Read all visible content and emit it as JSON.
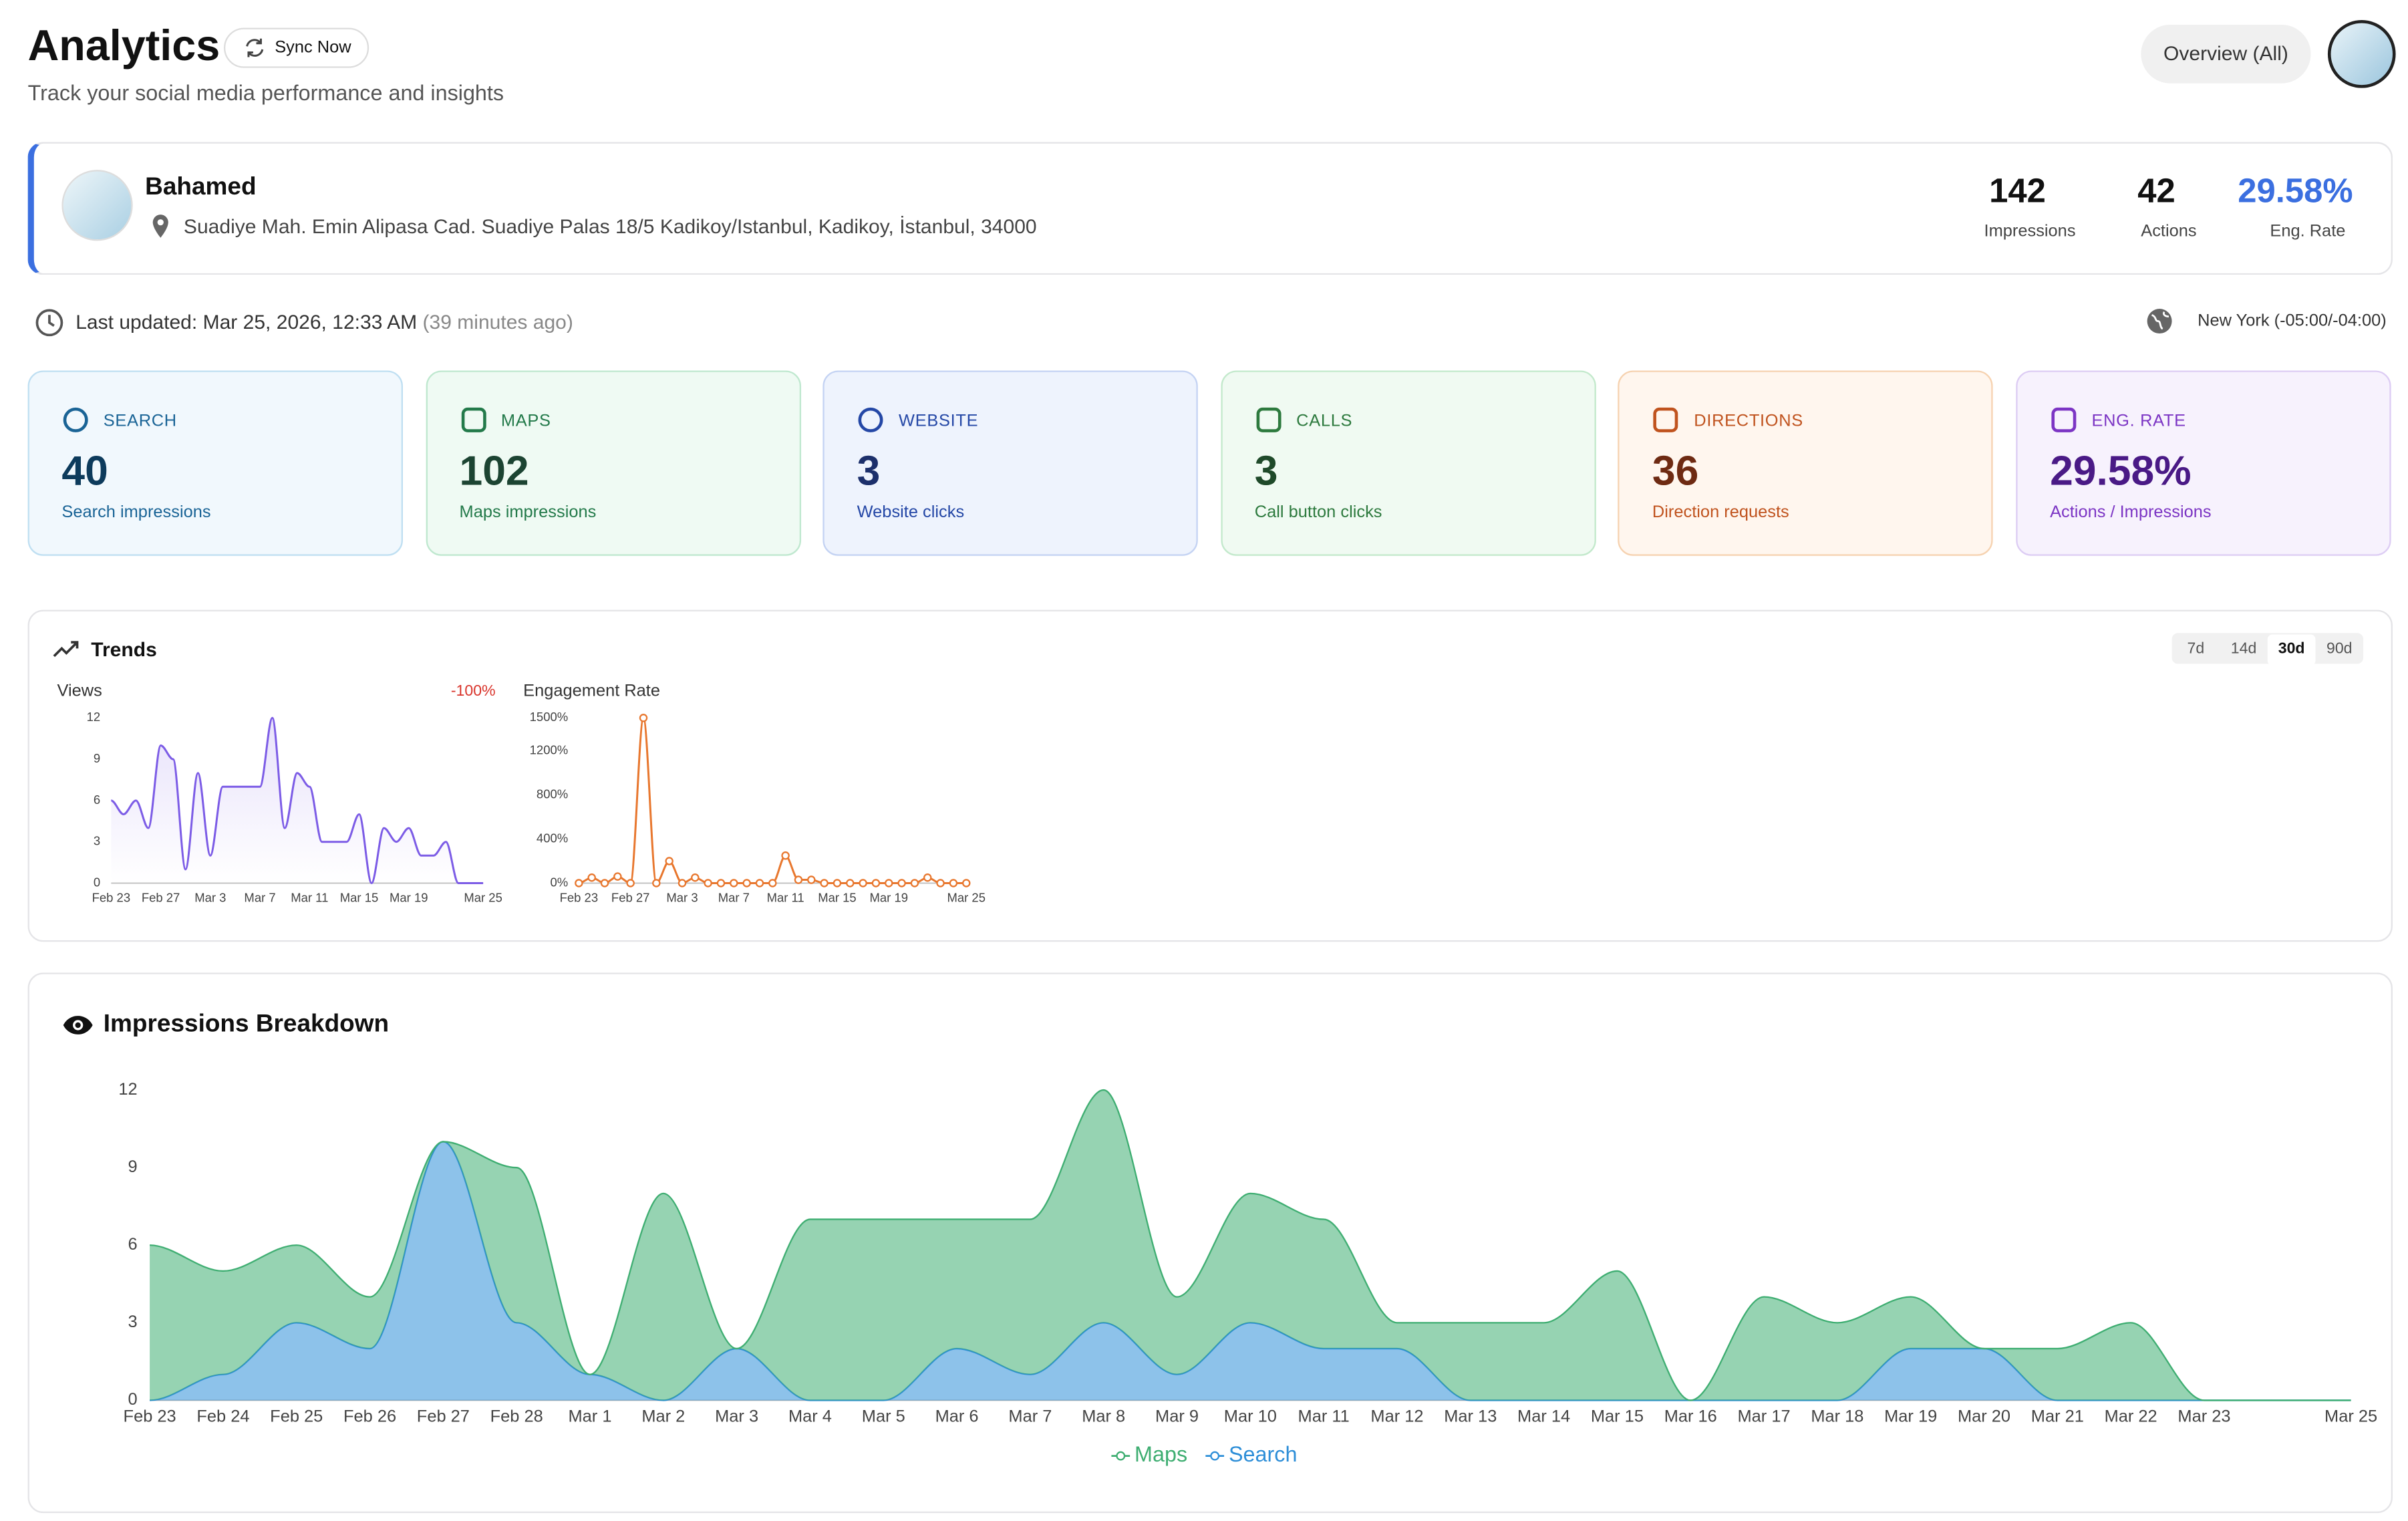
{
  "header": {
    "title": "Analytics",
    "sync": "Sync Now",
    "subtitle": "Track your social media performance and insights",
    "view": "Overview (All)"
  },
  "profile": {
    "name": "Bahamed",
    "address": "Suadiye Mah. Emin Alipasa Cad. Suadiye Palas 18/5 Kadikoy/Istanbul, Kadikoy, İstanbul, 34000",
    "stats": [
      {
        "value": 142,
        "label": "Impressions"
      },
      {
        "value": 42,
        "label": "Actions"
      },
      {
        "value": "29.58%",
        "label": "Eng. Rate"
      }
    ]
  },
  "status": {
    "updated": "Last updated: Mar 25, 2026, 12:33 AM",
    "ago": "(39 minutes ago)",
    "timezone": "New York (-05:00/-04:00)"
  },
  "cards": [
    {
      "label": "SEARCH",
      "value": 40,
      "caption": "Search impressions"
    },
    {
      "label": "MAPS",
      "value": 102,
      "caption": "Maps impressions"
    },
    {
      "label": "WEBSITE",
      "value": 3,
      "caption": "Website clicks"
    },
    {
      "label": "CALLS",
      "value": 3,
      "caption": "Call button clicks"
    },
    {
      "label": "DIRECTIONS",
      "value": 36,
      "caption": "Direction requests"
    },
    {
      "label": "ENG. RATE",
      "value": "29.58%",
      "caption": "Actions / Impressions"
    }
  ],
  "trends": {
    "title": "Trends",
    "ranges": [
      "7d",
      "14d",
      "30d",
      "90d"
    ]
  },
  "chart_data": [
    {
      "type": "line",
      "title": "Views",
      "annotation": "-100%",
      "color": "#7c5ce6",
      "area": true,
      "categories": [
        "Feb 23",
        null,
        null,
        null,
        "Feb 27",
        null,
        null,
        null,
        "Mar 3",
        null,
        null,
        null,
        "Mar 7",
        null,
        null,
        null,
        "Mar 11",
        null,
        null,
        null,
        "Mar 15",
        null,
        null,
        null,
        "Mar 19",
        null,
        null,
        null,
        null,
        null,
        "Mar 25"
      ],
      "values": [
        6,
        5,
        6,
        4,
        10,
        9,
        1,
        8,
        2,
        7,
        7,
        7,
        7,
        12,
        4,
        8,
        7,
        3,
        3,
        3,
        5,
        0,
        4,
        3,
        4,
        2,
        2,
        3,
        0,
        0,
        0
      ],
      "ylim": [
        0,
        12
      ],
      "yticks": [
        0,
        3,
        6,
        9,
        12
      ]
    },
    {
      "type": "line",
      "title": "Engagement Rate",
      "color": "#e8772e",
      "markers": true,
      "categories": [
        "Feb 23",
        null,
        null,
        null,
        "Feb 27",
        null,
        null,
        null,
        "Mar 3",
        null,
        null,
        null,
        "Mar 7",
        null,
        null,
        null,
        "Mar 11",
        null,
        null,
        null,
        "Mar 15",
        null,
        null,
        null,
        "Mar 19",
        null,
        null,
        null,
        null,
        null,
        "Mar 25"
      ],
      "values": [
        0,
        50,
        0,
        60,
        0,
        1500,
        0,
        200,
        0,
        50,
        0,
        0,
        0,
        0,
        0,
        0,
        250,
        30,
        30,
        0,
        0,
        0,
        0,
        0,
        0,
        0,
        0,
        50,
        0,
        0,
        0
      ],
      "ylim": [
        0,
        1500
      ],
      "yticks": [
        {
          "value": 0,
          "label": "0%"
        },
        {
          "value": 400,
          "label": "400%"
        },
        {
          "value": 800,
          "label": "800%"
        },
        {
          "value": 1200,
          "label": "1200%"
        },
        {
          "value": 1500,
          "label": "1500%"
        }
      ]
    },
    {
      "type": "stacked_area",
      "title": "Impressions Breakdown",
      "categories": [
        "Feb 23",
        "Feb 24",
        "Feb 25",
        "Feb 26",
        "Feb 27",
        "Feb 28",
        "Mar 1",
        "Mar 2",
        "Mar 3",
        "Mar 4",
        "Mar 5",
        "Mar 6",
        "Mar 7",
        "Mar 8",
        "Mar 9",
        "Mar 10",
        "Mar 11",
        "Mar 12",
        "Mar 13",
        "Mar 14",
        "Mar 15",
        "Mar 16",
        "Mar 17",
        "Mar 18",
        "Mar 19",
        "Mar 20",
        "Mar 21",
        "Mar 22",
        "Mar 23",
        null,
        "Mar 25"
      ],
      "series": [
        {
          "name": "Maps",
          "color": "#3fae72",
          "values": [
            6,
            4,
            3,
            2,
            0,
            6,
            0,
            8,
            0,
            7,
            7,
            5,
            6,
            9,
            3,
            5,
            5,
            1,
            3,
            3,
            5,
            0,
            4,
            3,
            2,
            0,
            2,
            3,
            0,
            0,
            0
          ]
        },
        {
          "name": "Search",
          "color": "#2f8fd8",
          "values": [
            0,
            1,
            3,
            2,
            10,
            3,
            1,
            0,
            2,
            0,
            0,
            2,
            1,
            3,
            1,
            3,
            2,
            2,
            0,
            0,
            0,
            0,
            0,
            0,
            2,
            2,
            0,
            0,
            0,
            0,
            0
          ]
        }
      ],
      "stack_order": [
        "Search",
        "Maps"
      ],
      "ylim": [
        0,
        12
      ],
      "yticks": [
        0,
        3,
        6,
        9,
        12
      ]
    }
  ]
}
